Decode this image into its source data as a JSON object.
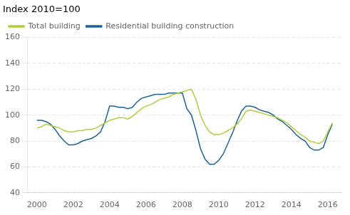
{
  "chart_data": {
    "type": "line",
    "title": "Index 2010=100",
    "x": [
      2000.0,
      2000.25,
      2000.5,
      2000.75,
      2001.0,
      2001.25,
      2001.5,
      2001.75,
      2002.0,
      2002.25,
      2002.5,
      2002.75,
      2003.0,
      2003.25,
      2003.5,
      2003.75,
      2004.0,
      2004.25,
      2004.5,
      2004.75,
      2005.0,
      2005.25,
      2005.5,
      2005.75,
      2006.0,
      2006.25,
      2006.5,
      2006.75,
      2007.0,
      2007.25,
      2007.5,
      2007.75,
      2008.0,
      2008.25,
      2008.5,
      2008.75,
      2009.0,
      2009.25,
      2009.5,
      2009.75,
      2010.0,
      2010.25,
      2010.5,
      2010.75,
      2011.0,
      2011.25,
      2011.5,
      2011.75,
      2012.0,
      2012.25,
      2012.5,
      2012.75,
      2013.0,
      2013.25,
      2013.5,
      2013.75,
      2014.0,
      2014.25,
      2014.5,
      2014.75,
      2015.0,
      2015.25,
      2015.5,
      2015.75,
      2016.0,
      2016.25
    ],
    "series": [
      {
        "name": "Total building",
        "color": "#b5cb3e",
        "values": [
          90,
          91,
          93,
          92,
          91,
          90,
          88,
          87,
          87,
          88,
          88,
          89,
          89,
          90,
          92,
          94,
          96,
          97,
          98,
          98,
          97,
          99,
          102,
          105,
          107,
          108,
          110,
          112,
          113,
          114,
          116,
          117,
          118,
          119,
          120,
          112,
          100,
          92,
          87,
          85,
          85,
          86,
          88,
          90,
          93,
          97,
          103,
          104,
          103,
          102,
          101,
          100,
          99,
          98,
          96,
          94,
          91,
          88,
          85,
          83,
          80,
          79,
          78,
          80,
          87,
          94
        ]
      },
      {
        "name": "Residential building construction",
        "color": "#1a6496",
        "values": [
          96,
          96,
          95,
          93,
          89,
          84,
          80,
          77,
          77,
          78,
          80,
          81,
          82,
          84,
          87,
          95,
          107,
          107,
          106,
          106,
          105,
          106,
          110,
          113,
          114,
          115,
          116,
          116,
          116,
          117,
          117,
          117,
          117,
          105,
          100,
          88,
          74,
          66,
          62,
          62,
          65,
          70,
          78,
          86,
          95,
          103,
          107,
          107,
          106,
          104,
          103,
          102,
          100,
          97,
          95,
          92,
          89,
          85,
          82,
          80,
          75,
          73,
          73,
          75,
          85,
          93
        ]
      }
    ],
    "xlim": [
      1999.5,
      2016.75
    ],
    "xticks": [
      2000,
      2002,
      2004,
      2006,
      2008,
      2010,
      2012,
      2014,
      2016
    ],
    "ylim": [
      40,
      160
    ],
    "yticks": [
      40,
      60,
      80,
      100,
      120,
      140,
      160
    ],
    "grid": "y",
    "legend": "upper left"
  }
}
